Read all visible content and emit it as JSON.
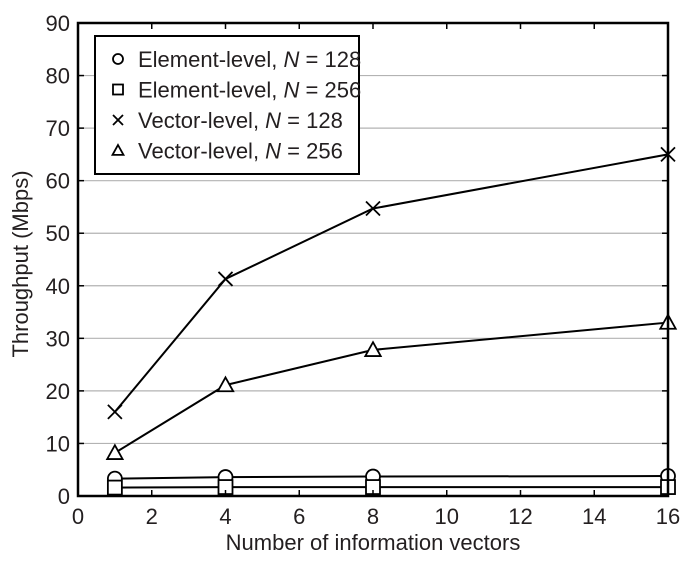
{
  "chart_data": {
    "type": "line",
    "title": "",
    "xlabel": "Number of information vectors",
    "ylabel": "Throughput (Mbps)",
    "xlim": [
      0,
      16
    ],
    "ylim": [
      0,
      90
    ],
    "xticks": [
      0,
      2,
      4,
      6,
      8,
      10,
      12,
      14,
      16
    ],
    "yticks": [
      0,
      10,
      20,
      30,
      40,
      50,
      60,
      70,
      80,
      90
    ],
    "grid": "horizontal",
    "legend_position": "upper left",
    "x": [
      1,
      4,
      8,
      16
    ],
    "series": [
      {
        "name": "Element-level, N = 128",
        "marker": "circle",
        "values": [
          3.3,
          3.6,
          3.7,
          3.8
        ]
      },
      {
        "name": "Element-level, N = 256",
        "marker": "square",
        "values": [
          1.6,
          1.7,
          1.7,
          1.7
        ]
      },
      {
        "name": "Vector-level, N = 128",
        "marker": "x",
        "values": [
          16,
          41.3,
          54.7,
          65
        ]
      },
      {
        "name": "Vector-level, N = 256",
        "marker": "triangle",
        "values": [
          8.2,
          21.1,
          27.8,
          33
        ]
      }
    ]
  },
  "legend": {
    "items": [
      {
        "prefix": "Element-level, ",
        "italic": "N",
        "suffix": " = 128",
        "marker": "circle"
      },
      {
        "prefix": "Element-level, ",
        "italic": "N",
        "suffix": " = 256",
        "marker": "square"
      },
      {
        "prefix": "Vector-level, ",
        "italic": "N",
        "suffix": " = 128",
        "marker": "x"
      },
      {
        "prefix": "Vector-level, ",
        "italic": "N",
        "suffix": " = 256",
        "marker": "triangle"
      }
    ]
  },
  "colors": {
    "line": "#000000",
    "grid": "#b3b3b3",
    "text": "#231f20"
  }
}
